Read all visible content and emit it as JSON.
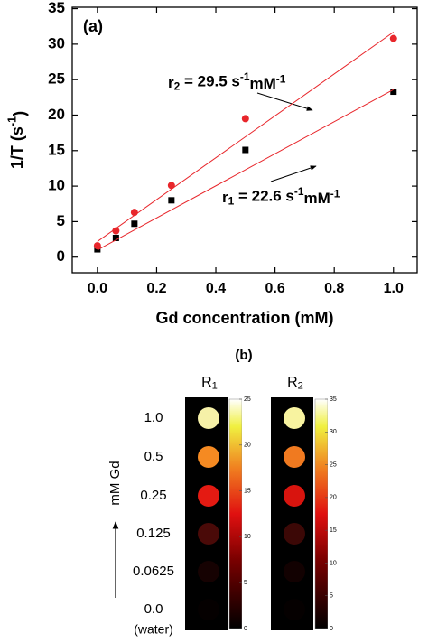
{
  "chart_data": {
    "type": "scatter",
    "label": "(a)",
    "x_label": [
      {
        "text": "Gd concentration (mM)",
        "shift": "none"
      }
    ],
    "y_label": [
      {
        "text": "1/T (s",
        "shift": "none"
      },
      {
        "text": "-1",
        "shift": "sup"
      },
      {
        "text": ")",
        "shift": "none"
      }
    ],
    "xlim": [
      -0.085,
      1.08
    ],
    "ylim": [
      -2.2,
      35.2
    ],
    "xticks": [
      {
        "value": 0,
        "label": "0.0"
      },
      0.2,
      0.4,
      0.6,
      0.8,
      {
        "value": 1,
        "label": "1.0"
      }
    ],
    "yticks": [
      0,
      5,
      10,
      15,
      20,
      25,
      30,
      35
    ],
    "series": [
      {
        "marker": "square",
        "color": "#000000",
        "x": [
          0,
          0.0625,
          0.125,
          0.25,
          0.5,
          1.0
        ],
        "values": [
          1.1,
          2.7,
          4.7,
          8.0,
          15.1,
          23.3
        ]
      },
      {
        "marker": "circle",
        "color": "#e8262b",
        "x": [
          0,
          0.0625,
          0.125,
          0.25,
          0.5,
          1.0
        ],
        "values": [
          1.6,
          3.7,
          6.3,
          10.1,
          19.5,
          30.8
        ]
      },
      {
        "marker": "line",
        "color": "#e8262b",
        "x": [
          0,
          1.0
        ],
        "values": [
          1.0,
          23.6
        ]
      },
      {
        "marker": "line",
        "color": "#e8262b",
        "x": [
          0,
          1.0
        ],
        "values": [
          2.2,
          31.7
        ]
      }
    ],
    "annotations": [
      [
        {
          "text": "r",
          "shift": "none"
        },
        {
          "text": "2",
          "shift": "sub"
        },
        {
          "text": " = 29.5 s",
          "shift": "none"
        },
        {
          "text": "-1",
          "shift": "sup"
        },
        {
          "text": "mM",
          "shift": "none"
        },
        {
          "text": "-1",
          "shift": "sup"
        }
      ],
      [
        {
          "text": "r",
          "shift": "none"
        },
        {
          "text": "1",
          "shift": "sub"
        },
        {
          "text": " = 22.6 s",
          "shift": "none"
        },
        {
          "text": "-1",
          "shift": "sup"
        },
        {
          "text": "mM",
          "shift": "none"
        },
        {
          "text": "-1",
          "shift": "sup"
        }
      ]
    ]
  },
  "image_panel": {
    "label": "(b)",
    "axis_label": "mM Gd",
    "rows": [
      "1.0",
      "0.5",
      "0.25",
      "0.125",
      "0.0625",
      "0.0"
    ],
    "row_note": "(water)",
    "columns": [
      {
        "header": [
          {
            "text": "R",
            "shift": "none"
          },
          {
            "text": "1",
            "shift": "sub"
          }
        ],
        "spot_colors": [
          "#f6f1a8",
          "#f58a22",
          "#e41a12",
          "#4a0a08",
          "#160202",
          "#050000"
        ],
        "colorbar_lim": [
          0,
          25
        ],
        "colorbar_ticks": [
          0,
          5,
          10,
          15,
          20,
          25
        ]
      },
      {
        "header": [
          {
            "text": "R",
            "shift": "none"
          },
          {
            "text": "2",
            "shift": "sub"
          }
        ],
        "spot_colors": [
          "#f8f3a0",
          "#f07a20",
          "#d8140e",
          "#3c0806",
          "#120101",
          "#050000"
        ],
        "colorbar_lim": [
          0,
          35
        ],
        "colorbar_ticks": [
          0,
          5,
          10,
          15,
          20,
          25,
          30,
          35
        ]
      }
    ]
  }
}
